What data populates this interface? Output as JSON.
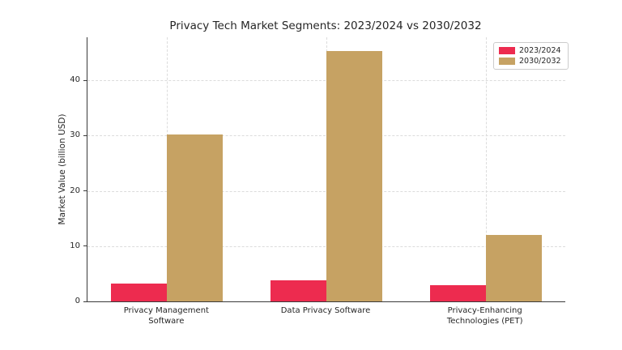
{
  "chart_data": {
    "type": "bar",
    "title": "Privacy Tech Market Segments: 2023/2024 vs 2030/2032",
    "xlabel": "",
    "ylabel": "Market Value (billion USD)",
    "categories": [
      "Privacy Management\nSoftware",
      "Data Privacy Software",
      "Privacy-Enhancing\nTechnologies (PET)"
    ],
    "series": [
      {
        "name": "2023/2024",
        "color": "#ED2B4F",
        "values": [
          3.3,
          3.8,
          3.0
        ]
      },
      {
        "name": "2030/2032",
        "color": "#C6A263",
        "values": [
          30.2,
          45.3,
          12.0
        ]
      }
    ],
    "ylim": [
      0,
      47.8
    ],
    "yticks": [
      0,
      10,
      20,
      30,
      40
    ],
    "grid": "dashed, horizontal at y-ticks and vertical at category centers",
    "legend_position": "upper right"
  }
}
